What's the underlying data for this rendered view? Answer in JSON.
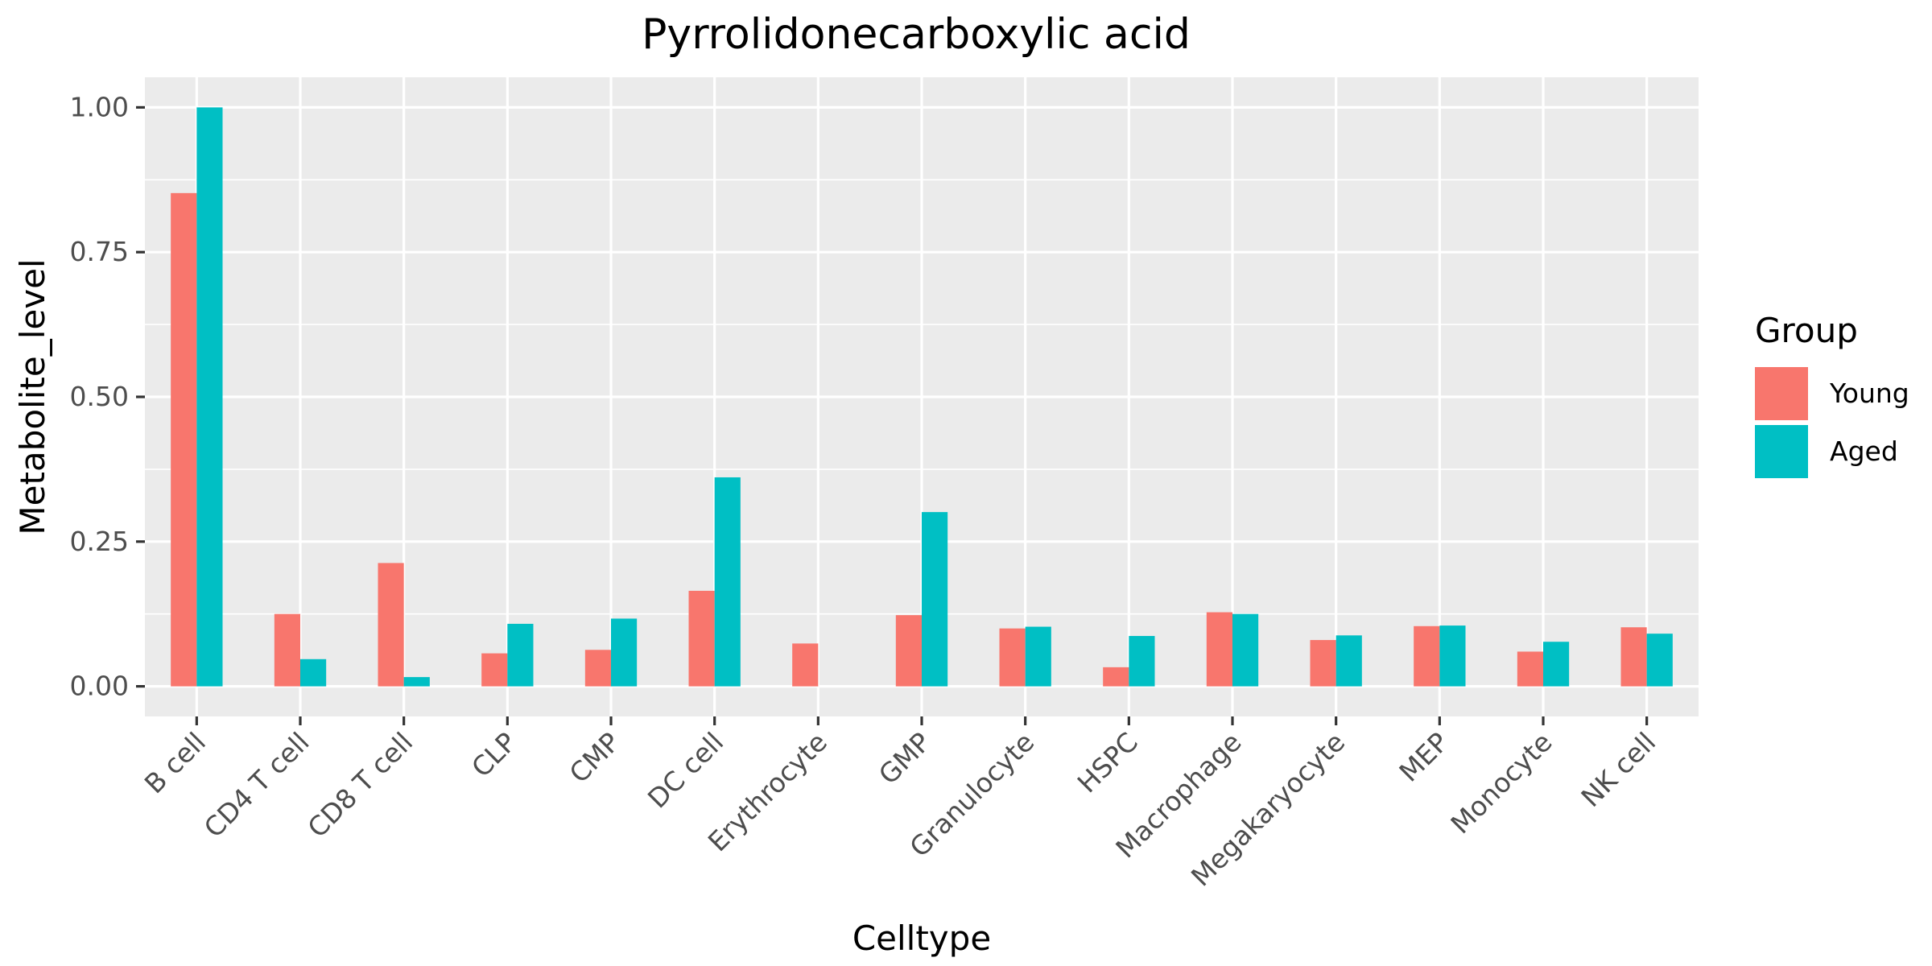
{
  "chart_data": {
    "type": "bar",
    "title": "Pyrrolidonecarboxylic acid",
    "xlabel": "Celltype",
    "ylabel": "Metabolite_level",
    "categories": [
      "B cell",
      "CD4 T cell",
      "CD8 T cell",
      "CLP",
      "CMP",
      "DC cell",
      "Erythrocyte",
      "GMP",
      "Granulocyte",
      "HSPC",
      "Macrophage",
      "Megakaryocyte",
      "MEP",
      "Monocyte",
      "NK cell"
    ],
    "series": [
      {
        "name": "Young",
        "color": "#F8766D",
        "values": [
          0.852,
          0.125,
          0.213,
          0.057,
          0.063,
          0.165,
          0.074,
          0.123,
          0.1,
          0.033,
          0.128,
          0.08,
          0.104,
          0.06,
          0.102
        ]
      },
      {
        "name": "Aged",
        "color": "#00BFC4",
        "values": [
          1.0,
          0.047,
          0.016,
          0.108,
          0.117,
          0.361,
          null,
          0.301,
          0.103,
          0.087,
          0.125,
          0.088,
          0.105,
          0.077,
          0.091
        ]
      }
    ],
    "ylim": [
      -0.052,
      1.052
    ],
    "yticks": [
      0.0,
      0.25,
      0.5,
      0.75,
      1.0
    ],
    "ytick_labels": [
      "0.00",
      "0.25",
      "0.50",
      "0.75",
      "1.00"
    ],
    "legend": {
      "title": "Group",
      "position": "right"
    },
    "grid": true,
    "panel_background": "#EBEBEB",
    "gridline_color": "#FFFFFF"
  }
}
